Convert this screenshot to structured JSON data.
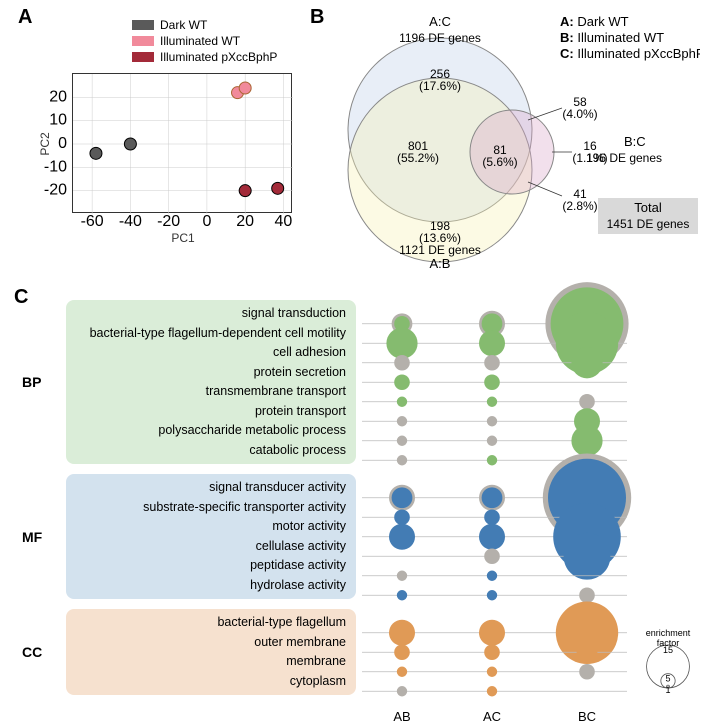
{
  "panelA": {
    "label": "A",
    "legend": [
      {
        "label": "Dark WT",
        "color": "#5a5a5a"
      },
      {
        "label": "Illuminated WT",
        "color": "#f18a9b"
      },
      {
        "label": "Illuminated pXccBphP",
        "color": "#a32a39"
      }
    ],
    "xlabel": "PC1",
    "ylabel": "PC2",
    "xlim": [
      -70,
      45
    ],
    "ylim": [
      -30,
      30
    ],
    "xticks": [
      -60,
      -40,
      -20,
      0,
      20,
      40
    ],
    "yticks": [
      -20,
      -10,
      0,
      10,
      20
    ],
    "points": [
      {
        "x": -58,
        "y": -4,
        "color": "#5a5a5a",
        "stroke": "#000"
      },
      {
        "x": -40,
        "y": 0,
        "color": "#5a5a5a",
        "stroke": "#000"
      },
      {
        "x": 16,
        "y": 22,
        "color": "#f18a9b",
        "stroke": "#a63"
      },
      {
        "x": 20,
        "y": 24,
        "color": "#f18a9b",
        "stroke": "#a63"
      },
      {
        "x": 20,
        "y": -20,
        "color": "#a32a39",
        "stroke": "#000"
      },
      {
        "x": 37,
        "y": -19,
        "color": "#a32a39",
        "stroke": "#000"
      }
    ],
    "point_r": 6
  },
  "panelB": {
    "label": "B",
    "conditions": [
      "A: Dark WT",
      "B: Illuminated WT",
      "C: Illuminated pXccBphP"
    ],
    "sets": {
      "AC": {
        "label": "A:C",
        "count": "1196 DE genes",
        "color": "#bccde8"
      },
      "AB": {
        "label": "A:B",
        "count": "1121 DE genes",
        "color": "#f6f0b2"
      },
      "BC": {
        "label": "B:C",
        "count": "196 DE genes",
        "color": "#d9a5c9"
      }
    },
    "regions": {
      "AConly": {
        "n": "256",
        "pct": "(17.6%)"
      },
      "ABonly": {
        "n": "198",
        "pct": "(13.6%)"
      },
      "BConly": {
        "n": "16",
        "pct": "(1.1%)"
      },
      "ACandAB": {
        "n": "801",
        "pct": "(55.2%)"
      },
      "ACandBC": {
        "n": "58",
        "pct": "(4.0%)"
      },
      "ABandBC": {
        "n": "41",
        "pct": "(2.8%)"
      },
      "all": {
        "n": "81",
        "pct": "(5.6%)"
      }
    },
    "total": {
      "title": "Total",
      "count": "1451 DE genes",
      "bg": "#d9d9d9"
    }
  },
  "panelC": {
    "label": "C",
    "groups": [
      {
        "id": "BP",
        "label": "BP",
        "color": "#daedd8",
        "bubble": "#85bb6f",
        "terms": [
          "signal transduction",
          "bacterial-type flagellum-dependent cell motility",
          "cell adhesion",
          "protein secretion",
          "transmembrane transport",
          "protein transport",
          "polysaccharide metabolic process",
          "catabolic process"
        ]
      },
      {
        "id": "MF",
        "label": "MF",
        "color": "#d3e2ee",
        "bubble": "#437cb4",
        "terms": [
          "signal transducer activity",
          "substrate-specific transporter activity",
          "motor activity",
          "cellulase activity",
          "peptidase activity",
          "hydrolase activity"
        ]
      },
      {
        "id": "CC",
        "label": "CC",
        "color": "#f6e1cf",
        "bubble": "#e09a56",
        "terms": [
          "bacterial-type flagellum",
          "outer membrane",
          "membrane",
          "cytoplasm"
        ]
      }
    ],
    "columns": [
      "AB",
      "AC",
      "BC"
    ],
    "row_h": 19.5,
    "bubble_color_grey": "#b4b0ab",
    "enrich_legend": {
      "label": "enrichment\nfactor",
      "values": [
        1,
        5,
        15
      ]
    },
    "data": {
      "BP": [
        {
          "AB": {
            "e": 3,
            "s": true,
            "bg": 4
          },
          "AC": {
            "e": 4,
            "s": true,
            "bg": 5
          },
          "BC": {
            "e": 14,
            "s": true,
            "bg": 16
          }
        },
        {
          "AB": {
            "e": 6,
            "s": true
          },
          "AC": {
            "e": 5,
            "s": true
          },
          "BC": {
            "e": 12,
            "s": true
          }
        },
        {
          "AB": {
            "e": 3,
            "s": false
          },
          "AC": {
            "e": 3,
            "s": false
          },
          "BC": {
            "e": 6,
            "s": true
          }
        },
        {
          "AB": {
            "e": 3,
            "s": true
          },
          "AC": {
            "e": 3,
            "s": true
          },
          "BC": {
            "e": 0
          }
        },
        {
          "AB": {
            "e": 2,
            "s": true
          },
          "AC": {
            "e": 2,
            "s": true
          },
          "BC": {
            "e": 3,
            "s": false
          }
        },
        {
          "AB": {
            "e": 2,
            "s": false
          },
          "AC": {
            "e": 2,
            "s": false
          },
          "BC": {
            "e": 5,
            "s": true
          }
        },
        {
          "AB": {
            "e": 2,
            "s": false
          },
          "AC": {
            "e": 2,
            "s": false
          },
          "BC": {
            "e": 6,
            "s": true
          }
        },
        {
          "AB": {
            "e": 2,
            "s": false
          },
          "AC": {
            "e": 2,
            "s": true
          },
          "BC": {
            "e": 0
          }
        }
      ],
      "MF": [
        {
          "AB": {
            "e": 4,
            "s": true,
            "bg": 5
          },
          "AC": {
            "e": 4,
            "s": true,
            "bg": 5
          },
          "BC": {
            "e": 15,
            "s": true,
            "bg": 17
          }
        },
        {
          "AB": {
            "e": 3,
            "s": true
          },
          "AC": {
            "e": 3,
            "s": true
          },
          "BC": {
            "e": 4,
            "s": false
          }
        },
        {
          "AB": {
            "e": 5,
            "s": true
          },
          "AC": {
            "e": 5,
            "s": true
          },
          "BC": {
            "e": 13,
            "s": true
          }
        },
        {
          "AB": {
            "e": 0
          },
          "AC": {
            "e": 3,
            "s": false
          },
          "BC": {
            "e": 9,
            "s": true
          }
        },
        {
          "AB": {
            "e": 2,
            "s": false
          },
          "AC": {
            "e": 2,
            "s": true
          },
          "BC": {
            "e": 0
          }
        },
        {
          "AB": {
            "e": 2,
            "s": true
          },
          "AC": {
            "e": 2,
            "s": true
          },
          "BC": {
            "e": 3,
            "s": false
          }
        }
      ],
      "CC": [
        {
          "AB": {
            "e": 5,
            "s": true
          },
          "AC": {
            "e": 5,
            "s": true
          },
          "BC": {
            "e": 12,
            "s": true
          }
        },
        {
          "AB": {
            "e": 3,
            "s": true
          },
          "AC": {
            "e": 3,
            "s": true
          },
          "BC": {
            "e": 4,
            "s": true
          }
        },
        {
          "AB": {
            "e": 2,
            "s": true
          },
          "AC": {
            "e": 2,
            "s": true
          },
          "BC": {
            "e": 3,
            "s": false
          }
        },
        {
          "AB": {
            "e": 2,
            "s": false
          },
          "AC": {
            "e": 2,
            "s": true
          },
          "BC": {
            "e": 0
          }
        }
      ]
    }
  }
}
